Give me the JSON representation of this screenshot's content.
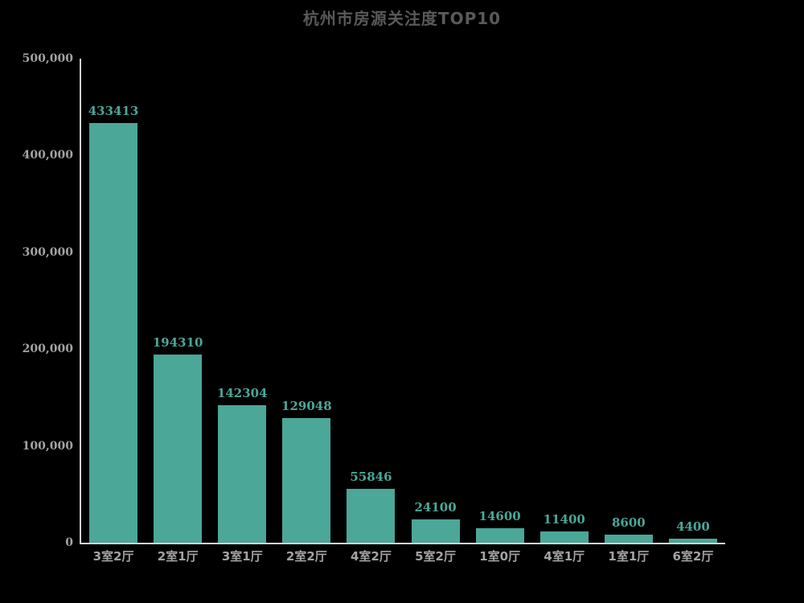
{
  "page": {
    "background_color": "#000000"
  },
  "chart_data": {
    "type": "bar",
    "title": "杭州市房源关注度TOP10",
    "categories": [
      "3室2厅",
      "2室1厅",
      "3室1厅",
      "2室2厅",
      "4室2厅",
      "5室2厅",
      "1室0厅",
      "4室1厅",
      "1室1厅",
      "6室2厅"
    ],
    "values": [
      433413,
      194310,
      142304,
      129048,
      55846,
      24100,
      14600,
      11400,
      8600,
      4400
    ],
    "value_labels": [
      "433413",
      "194310",
      "142304",
      "129048",
      "55846",
      "24100",
      "14600",
      "11400",
      "8600",
      "4400"
    ],
    "xlabel": "",
    "ylabel": "",
    "ylim": [
      0,
      500000
    ],
    "yticks": [
      0,
      100000,
      200000,
      300000,
      400000,
      500000
    ],
    "ytick_labels": [
      "0",
      "100,000",
      "200,000",
      "300,000",
      "400,000",
      "500,000"
    ],
    "grid": false,
    "legend": false,
    "bar_color": "#4BA798",
    "value_label_color": "#4BA798",
    "title_color": "#595959",
    "tick_label_color": "#A3A3A3",
    "axis_line_color": "#D2D2D2"
  }
}
